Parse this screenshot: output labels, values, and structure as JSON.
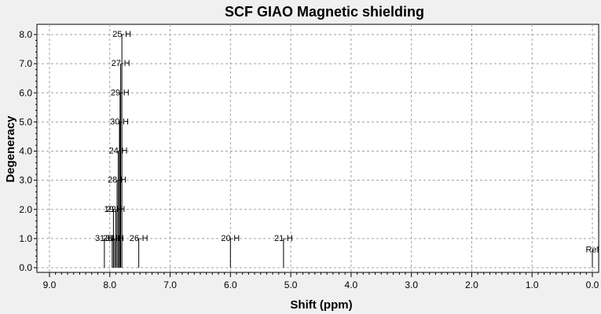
{
  "chart_data": {
    "type": "bar",
    "title": "SCF GIAO Magnetic shielding",
    "xlabel": "Shift (ppm)",
    "ylabel": "Degeneracy",
    "xlim": [
      9.0,
      0.0
    ],
    "x_reversed": true,
    "ylim": [
      0.0,
      8.3
    ],
    "xticks": [
      "9.0",
      "8.0",
      "7.0",
      "6.0",
      "5.0",
      "4.0",
      "3.0",
      "2.0",
      "1.0",
      "0.0"
    ],
    "yticks": [
      "0.0",
      "1.0",
      "2.0",
      "3.0",
      "4.0",
      "5.0",
      "6.0",
      "7.0",
      "8.0"
    ],
    "grid": true,
    "series": [
      {
        "peaks": [
          {
            "x": 7.8,
            "y": 8,
            "label": "25-H"
          },
          {
            "x": 7.82,
            "y": 7,
            "label": "27-H"
          },
          {
            "x": 7.83,
            "y": 6,
            "label": "29-H"
          },
          {
            "x": 7.84,
            "y": 5,
            "label": "30-H"
          },
          {
            "x": 7.86,
            "y": 4,
            "label": "24-H"
          },
          {
            "x": 7.88,
            "y": 3,
            "label": "28-H"
          },
          {
            "x": 7.9,
            "y": 2,
            "label": "22-H"
          },
          {
            "x": 7.94,
            "y": 2,
            "label": "19-H"
          },
          {
            "x": 8.09,
            "y": 1,
            "label": "31-H"
          },
          {
            "x": 7.96,
            "y": 1,
            "label": "23-H"
          },
          {
            "x": 7.92,
            "y": 1,
            "label": "33-H"
          },
          {
            "x": 7.52,
            "y": 1,
            "label": "26-H"
          },
          {
            "x": 6.0,
            "y": 1,
            "label": "20-H"
          },
          {
            "x": 5.12,
            "y": 1,
            "label": "21-H"
          },
          {
            "x": 0.0,
            "y": 0.6,
            "label": "Ref"
          }
        ]
      }
    ]
  }
}
